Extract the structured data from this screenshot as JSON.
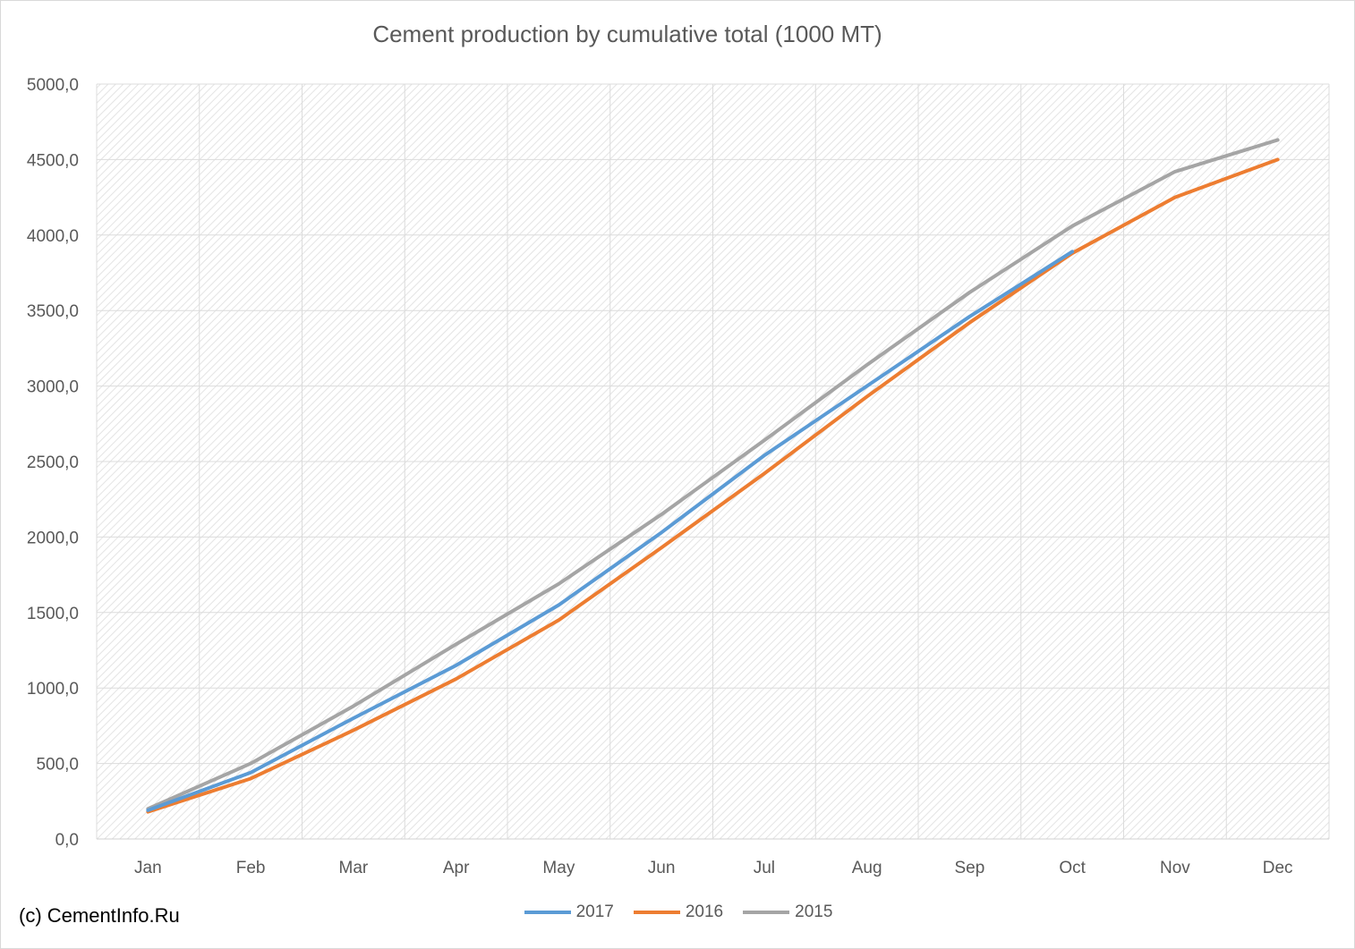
{
  "chart_data": {
    "type": "line",
    "title": "Cement production by cumulative total (1000 MT)",
    "xlabel": "",
    "ylabel": "",
    "categories": [
      "Jan",
      "Feb",
      "Mar",
      "Apr",
      "May",
      "Jun",
      "Jul",
      "Aug",
      "Sep",
      "Oct",
      "Nov",
      "Dec"
    ],
    "ylim": [
      0,
      5000
    ],
    "yticks": [
      "0,0",
      "500,0",
      "1000,0",
      "1500,0",
      "2000,0",
      "2500,0",
      "3000,0",
      "3500,0",
      "4000,0",
      "4500,0",
      "5000,0"
    ],
    "grid": true,
    "legend_position": "bottom",
    "series": [
      {
        "name": "2017",
        "color": "#5b9bd5",
        "values": [
          190,
          440,
          800,
          1150,
          1550,
          2030,
          2540,
          3000,
          3460,
          3890,
          null,
          null
        ]
      },
      {
        "name": "2016",
        "color": "#ed7d31",
        "values": [
          180,
          400,
          720,
          1060,
          1450,
          1930,
          2420,
          2930,
          3420,
          3880,
          4250,
          4500
        ]
      },
      {
        "name": "2015",
        "color": "#a5a5a5",
        "values": [
          200,
          500,
          880,
          1290,
          1690,
          2150,
          2640,
          3140,
          3620,
          4060,
          4420,
          4630
        ]
      }
    ]
  },
  "source": "(c) CementInfo.Ru"
}
